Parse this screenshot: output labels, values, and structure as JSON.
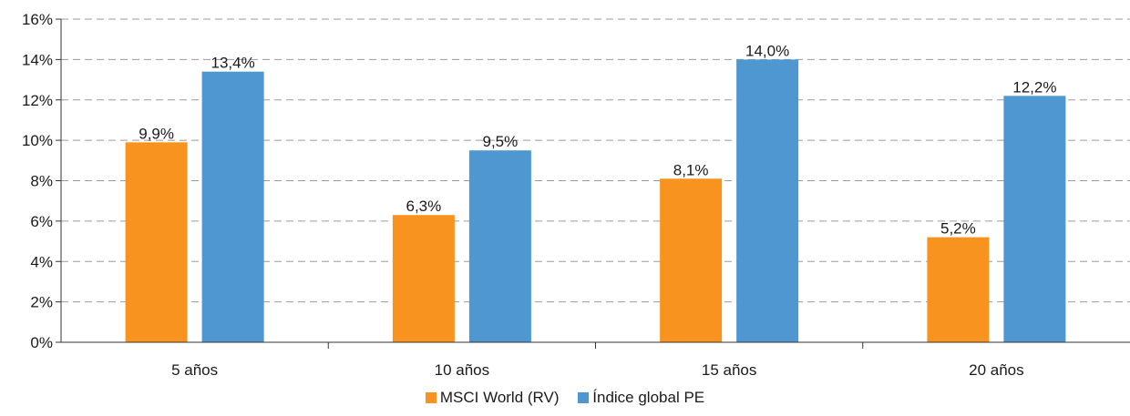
{
  "chart_data": {
    "type": "bar",
    "title": "",
    "xlabel": "",
    "ylabel": "",
    "categories": [
      "5 años",
      "10 años",
      "15 años",
      "20 años"
    ],
    "series": [
      {
        "name": "MSCI World (RV)",
        "color": "#F7931E",
        "values": [
          9.9,
          6.3,
          8.1,
          5.2
        ],
        "labels": [
          "9,9%",
          "6,3%",
          "8,1%",
          "5,2%"
        ]
      },
      {
        "name": "Índice global PE",
        "color": "#4F97D1",
        "values": [
          13.4,
          9.5,
          14.0,
          12.2
        ],
        "labels": [
          "13,4%",
          "9,5%",
          "14,0%",
          "12,2%"
        ]
      }
    ],
    "ylim": [
      0,
      16
    ],
    "yticks": [
      "0%",
      "2%",
      "4%",
      "6%",
      "8%",
      "10%",
      "12%",
      "14%",
      "16%"
    ],
    "grid": "dashed horizontal",
    "legend": "bottom-center"
  }
}
